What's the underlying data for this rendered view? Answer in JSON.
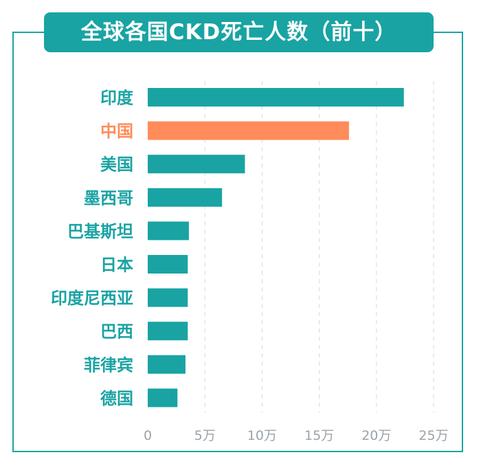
{
  "title": "全球各国CKD死亡人数（前十）",
  "colors": {
    "accent": "#1aa3a3",
    "highlight": "#ff8c5a",
    "grid": "#d9d9d9",
    "tick_text": "#9aa3aa"
  },
  "chart_data": {
    "type": "bar",
    "orientation": "horizontal",
    "title": "全球各国CKD死亡人数（前十）",
    "categories": [
      "印度",
      "中国",
      "美国",
      "墨西哥",
      "巴基斯坦",
      "日本",
      "印度尼西亚",
      "巴西",
      "菲律宾",
      "德国"
    ],
    "values": [
      22.4,
      17.6,
      8.5,
      6.5,
      3.6,
      3.5,
      3.5,
      3.5,
      3.3,
      2.6
    ],
    "unit": "万",
    "highlight": "中国",
    "xlim": [
      0,
      25
    ],
    "xticks": [
      0,
      5,
      10,
      15,
      20,
      25
    ],
    "xtick_labels": [
      "0",
      "5万",
      "10万",
      "15万",
      "20万",
      "25万"
    ],
    "grid": "vertical dashed",
    "legend": "none"
  }
}
